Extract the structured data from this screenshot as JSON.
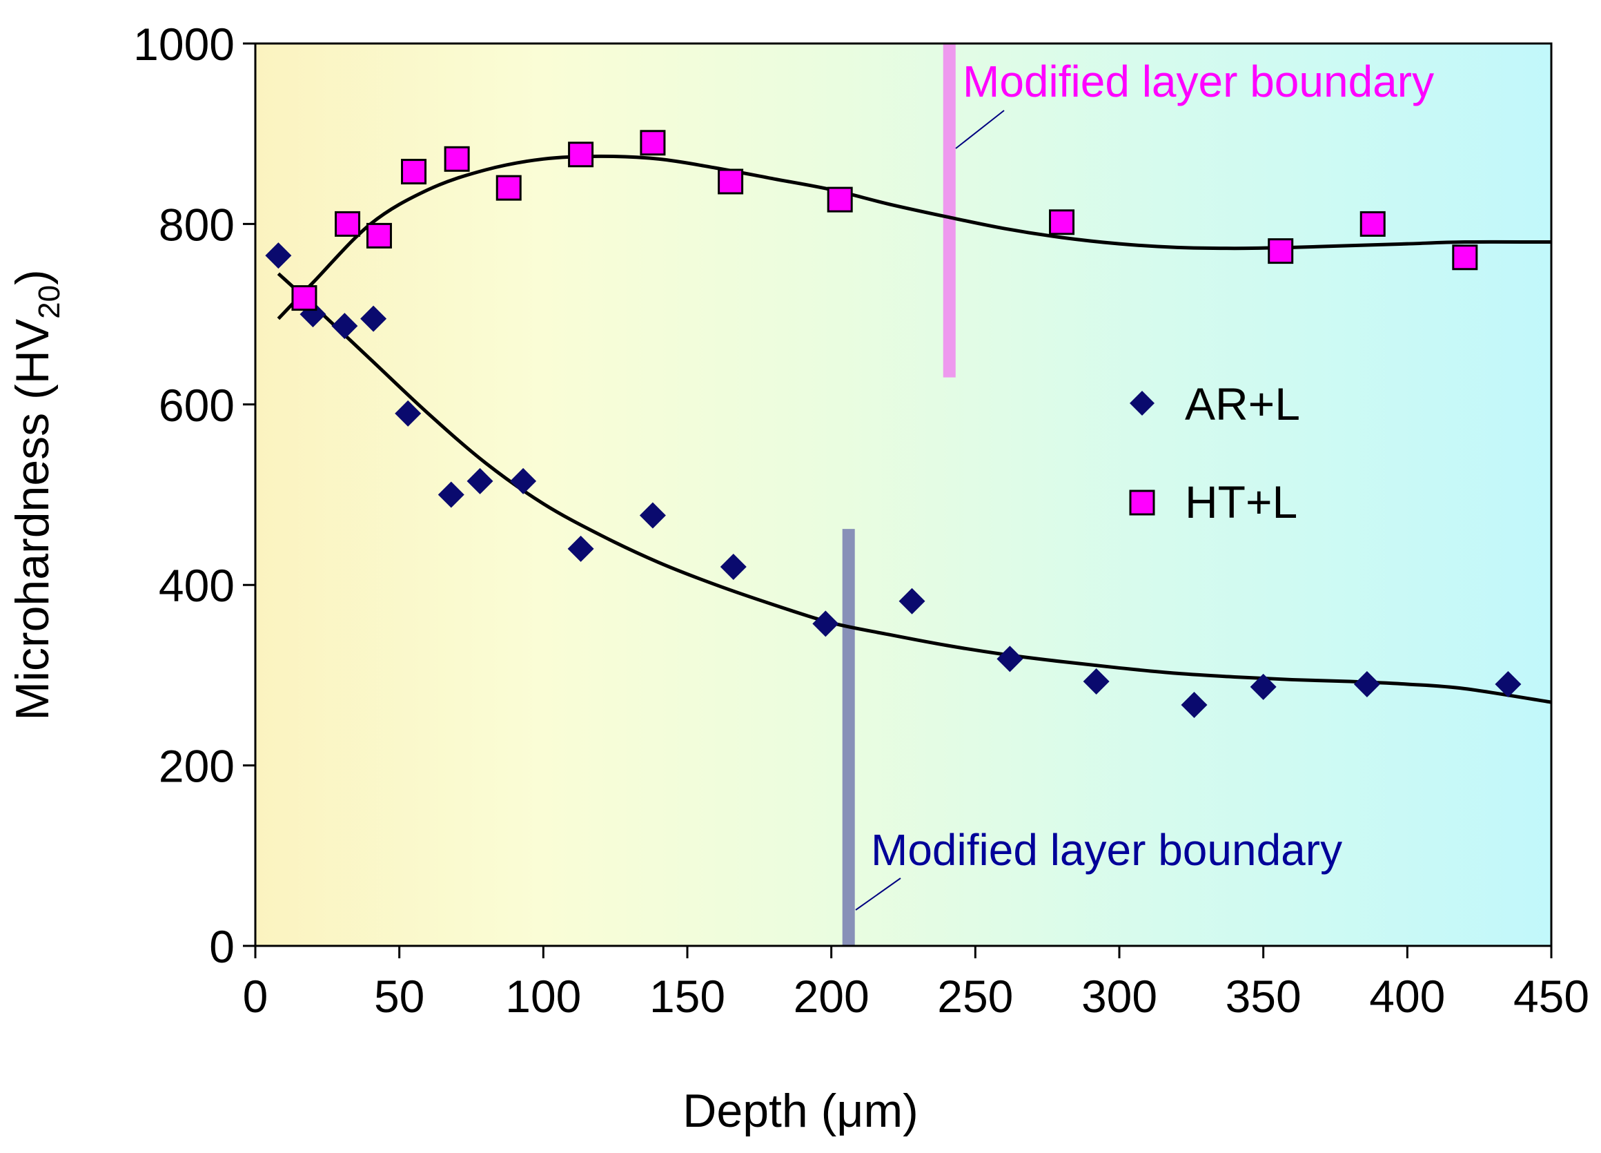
{
  "chart_data": {
    "type": "scatter",
    "title": "",
    "xlabel": "Depth (μm)",
    "ylabel": "Microhardness (HV",
    "ylabel_subscript": "20",
    "ylabel_close": ")",
    "xlim": [
      0,
      450
    ],
    "ylim": [
      0,
      1000
    ],
    "x_ticks": [
      0,
      50,
      100,
      150,
      200,
      250,
      300,
      350,
      400,
      450
    ],
    "y_ticks": [
      0,
      200,
      400,
      600,
      800,
      1000
    ],
    "x_tick_labels": [
      "0",
      "50",
      "100",
      "150",
      "200",
      "250",
      "300",
      "350",
      "400",
      "450"
    ],
    "y_tick_labels": [
      "0",
      "200",
      "400",
      "600",
      "800",
      "1000"
    ],
    "grid": false,
    "background": "gradient (yellow to cyan)",
    "legend_position": "right-center",
    "series": [
      {
        "name": "AR+L",
        "marker": "diamond",
        "color": "#0a0a6e",
        "x": [
          8,
          20,
          31,
          41,
          53,
          68,
          78,
          93,
          113,
          138,
          166,
          198,
          228,
          262,
          292,
          326,
          350,
          386,
          435
        ],
        "y": [
          765,
          700,
          687,
          695,
          590,
          500,
          515,
          515,
          440,
          477,
          420,
          357,
          382,
          318,
          293,
          267,
          287,
          290,
          290
        ],
        "fit_x": [
          8,
          20,
          40,
          60,
          80,
          100,
          120,
          140,
          160,
          180,
          200,
          220,
          240,
          260,
          280,
          300,
          320,
          340,
          360,
          380,
          400,
          420,
          450
        ],
        "fit_y": [
          745,
          710,
          650,
          590,
          535,
          490,
          455,
          425,
          400,
          378,
          358,
          345,
          333,
          323,
          315,
          308,
          302,
          298,
          295,
          293,
          290,
          285,
          270
        ]
      },
      {
        "name": "HT+L",
        "marker": "square",
        "color": "#ff00ff",
        "x": [
          17,
          32,
          43,
          55,
          70,
          88,
          113,
          138,
          165,
          203,
          280,
          356,
          388,
          420
        ],
        "y": [
          718,
          800,
          787,
          858,
          872,
          840,
          877,
          890,
          847,
          827,
          802,
          770,
          800,
          763
        ],
        "fit_x": [
          8,
          20,
          40,
          60,
          80,
          100,
          120,
          140,
          160,
          180,
          200,
          220,
          240,
          260,
          280,
          300,
          320,
          340,
          360,
          380,
          400,
          420,
          450
        ],
        "fit_y": [
          695,
          735,
          800,
          838,
          860,
          872,
          875,
          872,
          862,
          850,
          838,
          822,
          808,
          795,
          785,
          778,
          774,
          773,
          774,
          776,
          778,
          780,
          780
        ]
      }
    ],
    "boundaries": [
      {
        "label": "Modified layer boundary",
        "x": 241,
        "y_from": 630,
        "y_to": 1000,
        "color": "#ee99ee",
        "text_color": "#ff00ff"
      },
      {
        "label": "Modified layer boundary",
        "x": 206,
        "y_from": 0,
        "y_to": 462,
        "color": "#8890b8",
        "text_color": "#000099"
      }
    ],
    "fit_line_color": "#000000"
  }
}
